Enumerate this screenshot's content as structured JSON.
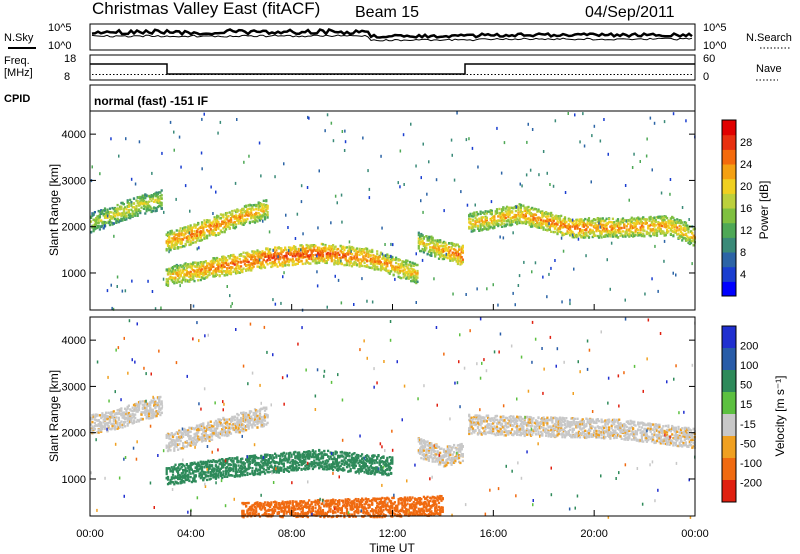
{
  "header": {
    "title": "Christmas Valley East (fitACF)",
    "beam": "Beam 15",
    "date": "04/Sep/2011"
  },
  "top_panels": {
    "nsky_label": "N.Sky",
    "nsearch_label": "N.Search",
    "freq_label_1": "Freq.",
    "freq_label_2": "[MHz]",
    "nave_label": "Nave",
    "cpid_label": "CPID",
    "cpid_text": "normal (fast) -151 IF",
    "noise_ticks": [
      "10^5",
      "10^0"
    ],
    "freq_ticks": [
      "18",
      "8"
    ],
    "nave_ticks": [
      "60",
      "0"
    ]
  },
  "chart_data": [
    {
      "type": "heatmap",
      "panel": "power",
      "ylabel": "Slant Range [km]",
      "xlabel": "",
      "yticks": [
        "1000",
        "2000",
        "3000",
        "4000"
      ],
      "ylim": [
        200,
        4500
      ],
      "xlim": [
        0,
        24
      ],
      "colorbar": {
        "label": "Power [dB]",
        "ticks": [
          "4",
          "8",
          "12",
          "16",
          "20",
          "24",
          "28"
        ],
        "range": [
          0,
          32
        ],
        "colors": [
          "#0000ff",
          "#1a3ed0",
          "#2c64a6",
          "#3a8a78",
          "#4ea856",
          "#7fc040",
          "#bcd03c",
          "#f0d020",
          "#f4a012",
          "#f46a0c",
          "#e83010",
          "#e00000"
        ]
      },
      "series": [
        {
          "x": [
            0,
            1,
            2,
            2.8
          ],
          "y": [
            2100,
            2300,
            2500,
            2600
          ],
          "level": [
            18,
            20,
            20,
            19
          ]
        },
        {
          "x": [
            3,
            4,
            5,
            6,
            7
          ],
          "y": [
            1700,
            1850,
            2050,
            2250,
            2400
          ],
          "level": [
            24,
            26,
            26,
            24,
            22
          ]
        },
        {
          "x": [
            3,
            5,
            7,
            9,
            11,
            13
          ],
          "y": [
            950,
            1150,
            1350,
            1450,
            1350,
            1000
          ],
          "level": [
            22,
            26,
            28,
            28,
            26,
            22
          ]
        },
        {
          "x": [
            13,
            14,
            14.8
          ],
          "y": [
            1700,
            1500,
            1400
          ],
          "level": [
            20,
            24,
            28
          ]
        },
        {
          "x": [
            15,
            17,
            19,
            21,
            23,
            24
          ],
          "y": [
            2100,
            2300,
            2000,
            2000,
            2050,
            1800
          ],
          "level": [
            22,
            24,
            26,
            24,
            24,
            22
          ]
        }
      ]
    },
    {
      "type": "heatmap",
      "panel": "velocity",
      "ylabel": "Slant Range [km]",
      "xlabel": "Time UT",
      "yticks": [
        "1000",
        "2000",
        "3000",
        "4000"
      ],
      "xticks": [
        "00:00",
        "04:00",
        "08:00",
        "12:00",
        "16:00",
        "20:00",
        "00:00"
      ],
      "ylim": [
        200,
        4500
      ],
      "xlim": [
        0,
        24
      ],
      "colorbar": {
        "label": "Velocity [m s⁻¹]",
        "ticks": [
          "200",
          "100",
          "50",
          "15",
          "-15",
          "-50",
          "-100",
          "-200"
        ],
        "colors": [
          "#2030d0",
          "#285ca8",
          "#2e8a5a",
          "#5cc040",
          "#c8c8c8",
          "#f0a020",
          "#f06a10",
          "#e02010"
        ]
      },
      "series": [
        {
          "x": [
            0,
            1,
            2,
            2.8
          ],
          "y": [
            2200,
            2300,
            2500,
            2600
          ],
          "velocity": [
            -5,
            -5,
            -5,
            -5
          ]
        },
        {
          "x": [
            3,
            5,
            7
          ],
          "y": [
            1800,
            2100,
            2400
          ],
          "velocity": [
            -5,
            -5,
            -5
          ]
        },
        {
          "x": [
            3,
            6,
            9,
            12
          ],
          "y": [
            1100,
            1300,
            1450,
            1300
          ],
          "velocity": [
            60,
            60,
            55,
            50
          ]
        },
        {
          "x": [
            13,
            14,
            14.8
          ],
          "y": [
            1700,
            1500,
            1600
          ],
          "velocity": [
            -5,
            -5,
            -5
          ]
        },
        {
          "x": [
            15,
            18,
            21,
            24
          ],
          "y": [
            2200,
            2150,
            2100,
            1900
          ],
          "velocity": [
            -5,
            -5,
            -5,
            -5
          ]
        },
        {
          "x": [
            6,
            10,
            14
          ],
          "y": [
            300,
            380,
            450
          ],
          "velocity": [
            -70,
            -70,
            -80
          ]
        }
      ]
    }
  ]
}
